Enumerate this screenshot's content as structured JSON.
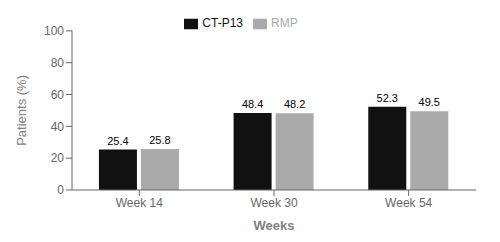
{
  "chart_data": {
    "type": "bar",
    "categories": [
      "Week 14",
      "Week 30",
      "Week 54"
    ],
    "series": [
      {
        "name": "CT-P13",
        "color": "#111111",
        "values": [
          25.4,
          48.4,
          52.3
        ]
      },
      {
        "name": "RMP",
        "color": "#aaaaaa",
        "values": [
          25.8,
          48.2,
          49.5
        ]
      }
    ],
    "xlabel": "Weeks",
    "ylabel": "Patients (%)",
    "ylim": [
      0,
      100
    ],
    "yticks": [
      0,
      20,
      40,
      60,
      80,
      100
    ],
    "grid": false,
    "legend": "upper center",
    "data_labels": true
  }
}
